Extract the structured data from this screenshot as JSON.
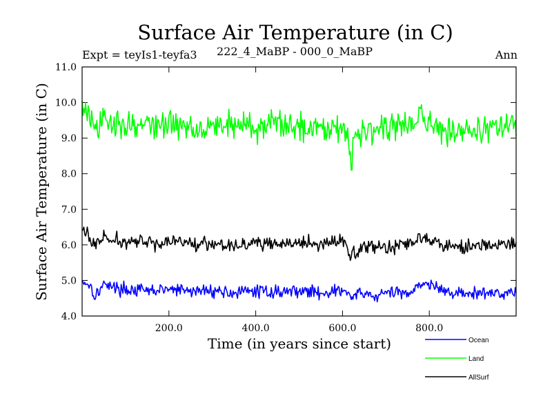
{
  "chart_data": {
    "type": "line",
    "title": "Surface Air Temperature (in C)",
    "subtitle_left": "Expt = teyIs1-teyfa3",
    "subtitle_center": "222_4_MaBP - 000_0_MaBP",
    "subtitle_right": "Ann",
    "xlabel": "Time (in years since start)",
    "ylabel": "Surface Air Temperature (in C)",
    "xlim": [
      0,
      1000
    ],
    "ylim": [
      4.0,
      11.0
    ],
    "x_ticks": [
      200,
      400,
      600,
      800
    ],
    "x_tick_labels": [
      "200.0",
      "400.0",
      "600.0",
      "800.0"
    ],
    "y_ticks": [
      4.0,
      5.0,
      6.0,
      7.0,
      8.0,
      9.0,
      10.0,
      11.0
    ],
    "y_tick_labels": [
      "4.0",
      "5.0",
      "6.0",
      "7.0",
      "8.0",
      "9.0",
      "10.0",
      "11.0"
    ],
    "series": [
      {
        "name": "Ocean",
        "color": "#0000ff",
        "x": [
          0,
          20,
          30,
          40,
          50,
          60,
          70,
          100,
          150,
          200,
          250,
          300,
          350,
          400,
          450,
          500,
          550,
          600,
          620,
          650,
          680,
          700,
          750,
          780,
          790,
          800,
          850,
          900,
          950,
          1000
        ],
        "values": [
          5.0,
          4.85,
          4.55,
          4.75,
          4.85,
          4.95,
          4.8,
          4.75,
          4.7,
          4.75,
          4.7,
          4.72,
          4.65,
          4.7,
          4.68,
          4.72,
          4.65,
          4.72,
          4.55,
          4.62,
          4.55,
          4.65,
          4.65,
          4.9,
          5.0,
          4.85,
          4.65,
          4.62,
          4.65,
          4.68
        ]
      },
      {
        "name": "Land",
        "color": "#00ff00",
        "x": [
          0,
          10,
          20,
          30,
          40,
          50,
          60,
          70,
          100,
          150,
          200,
          250,
          300,
          350,
          400,
          450,
          500,
          550,
          600,
          610,
          620,
          630,
          650,
          700,
          750,
          770,
          780,
          790,
          800,
          850,
          900,
          950,
          1000
        ],
        "values": [
          9.9,
          9.75,
          9.5,
          9.2,
          9.3,
          9.5,
          9.4,
          9.45,
          9.4,
          9.35,
          9.4,
          9.3,
          9.35,
          9.4,
          9.3,
          9.4,
          9.35,
          9.3,
          9.4,
          9.0,
          8.3,
          9.1,
          9.3,
          9.3,
          9.35,
          9.4,
          9.9,
          9.4,
          9.35,
          9.25,
          9.2,
          9.3,
          9.4
        ]
      },
      {
        "name": "AllSurf",
        "color": "#000000",
        "x": [
          0,
          10,
          20,
          30,
          40,
          50,
          60,
          100,
          150,
          200,
          250,
          300,
          350,
          400,
          450,
          500,
          550,
          600,
          620,
          650,
          700,
          750,
          780,
          790,
          800,
          850,
          900,
          950,
          1000
        ],
        "values": [
          6.45,
          6.35,
          6.1,
          6.0,
          6.1,
          6.25,
          6.1,
          6.1,
          6.05,
          6.1,
          6.05,
          6.05,
          6.0,
          6.05,
          6.0,
          6.05,
          6.0,
          6.1,
          5.75,
          5.95,
          5.95,
          6.0,
          6.25,
          6.4,
          6.1,
          6.0,
          5.95,
          6.0,
          6.0
        ]
      }
    ],
    "legend": [
      "Ocean",
      "Land",
      "AllSurf"
    ],
    "legend_position": "bottom-right"
  }
}
